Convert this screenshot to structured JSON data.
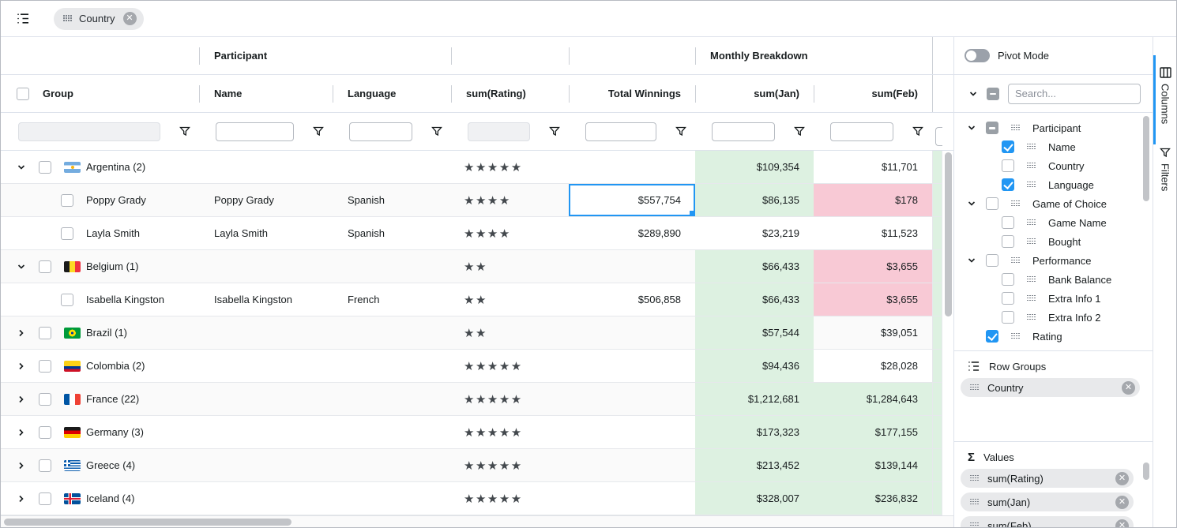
{
  "toolbar": {
    "group_chip": "Country"
  },
  "grid": {
    "column_groups": [
      {
        "label": "",
        "span": 1
      },
      {
        "label": "Participant",
        "span": 2
      },
      {
        "label": "",
        "span": 1
      },
      {
        "label": "",
        "span": 1
      },
      {
        "label": "Monthly Breakdown",
        "span": 2
      }
    ],
    "columns": [
      {
        "label": "Group",
        "align": "left",
        "filter": "disabled",
        "has_checkbox": true
      },
      {
        "label": "Name",
        "align": "left",
        "filter": "text"
      },
      {
        "label": "Language",
        "align": "left",
        "filter": "text"
      },
      {
        "label": "sum(Rating)",
        "align": "left",
        "filter": "disabled"
      },
      {
        "label": "Total Winnings",
        "align": "right",
        "filter": "text"
      },
      {
        "label": "sum(Jan)",
        "align": "right",
        "filter": "text"
      },
      {
        "label": "sum(Feb)",
        "align": "right",
        "filter": "text"
      }
    ],
    "rows": [
      {
        "kind": "group",
        "flag": "argentina",
        "country": "Argentina",
        "count": 2,
        "expanded": true,
        "stars": 5,
        "winnings": "",
        "jan": "$109,354",
        "jan_bg": "green",
        "feb": "$11,701",
        "feb_bg": "none"
      },
      {
        "kind": "leaf",
        "name": "Poppy Grady",
        "language": "Spanish",
        "stars": 4,
        "winnings": "$557,754",
        "selected": true,
        "jan": "$86,135",
        "jan_bg": "green",
        "feb": "$178",
        "feb_bg": "pink"
      },
      {
        "kind": "leaf",
        "name": "Layla Smith",
        "language": "Spanish",
        "stars": 4,
        "winnings": "$289,890",
        "jan": "$23,219",
        "jan_bg": "none",
        "feb": "$11,523",
        "feb_bg": "none"
      },
      {
        "kind": "group",
        "flag": "belgium",
        "country": "Belgium",
        "count": 1,
        "expanded": true,
        "stars": 2,
        "winnings": "",
        "jan": "$66,433",
        "jan_bg": "green",
        "feb": "$3,655",
        "feb_bg": "pink"
      },
      {
        "kind": "leaf",
        "name": "Isabella Kingston",
        "language": "French",
        "stars": 2,
        "winnings": "$506,858",
        "jan": "$66,433",
        "jan_bg": "green",
        "feb": "$3,655",
        "feb_bg": "pink"
      },
      {
        "kind": "group",
        "flag": "brazil",
        "country": "Brazil",
        "count": 1,
        "expanded": false,
        "stars": 2,
        "winnings": "",
        "jan": "$57,544",
        "jan_bg": "green",
        "feb": "$39,051",
        "feb_bg": "none"
      },
      {
        "kind": "group",
        "flag": "colombia",
        "country": "Colombia",
        "count": 2,
        "expanded": false,
        "stars": 5,
        "winnings": "",
        "jan": "$94,436",
        "jan_bg": "green",
        "feb": "$28,028",
        "feb_bg": "none"
      },
      {
        "kind": "group",
        "flag": "france",
        "country": "France",
        "count": 22,
        "expanded": false,
        "stars": 5,
        "winnings": "",
        "jan": "$1,212,681",
        "jan_bg": "green",
        "feb": "$1,284,643",
        "feb_bg": "green"
      },
      {
        "kind": "group",
        "flag": "germany",
        "country": "Germany",
        "count": 3,
        "expanded": false,
        "stars": 5,
        "winnings": "",
        "jan": "$173,323",
        "jan_bg": "green",
        "feb": "$177,155",
        "feb_bg": "green"
      },
      {
        "kind": "group",
        "flag": "greece",
        "country": "Greece",
        "count": 4,
        "expanded": false,
        "stars": 5,
        "winnings": "",
        "jan": "$213,452",
        "jan_bg": "green",
        "feb": "$139,144",
        "feb_bg": "green"
      },
      {
        "kind": "group",
        "flag": "iceland",
        "country": "Iceland",
        "count": 4,
        "expanded": false,
        "stars": 5,
        "winnings": "",
        "jan": "$328,007",
        "jan_bg": "green",
        "feb": "$236,832",
        "feb_bg": "green"
      }
    ]
  },
  "sidebar": {
    "pivot_mode_label": "Pivot Mode",
    "search_placeholder": "Search...",
    "tree": [
      {
        "label": "Participant",
        "level": 0,
        "chevron": true,
        "checkbox": "indeterminate"
      },
      {
        "label": "Name",
        "level": 1,
        "chevron": false,
        "checkbox": "checked"
      },
      {
        "label": "Country",
        "level": 1,
        "chevron": false,
        "checkbox": "unchecked"
      },
      {
        "label": "Language",
        "level": 1,
        "chevron": false,
        "checkbox": "checked"
      },
      {
        "label": "Game of Choice",
        "level": 0,
        "chevron": true,
        "checkbox": "unchecked"
      },
      {
        "label": "Game Name",
        "level": 1,
        "chevron": false,
        "checkbox": "unchecked"
      },
      {
        "label": "Bought",
        "level": 1,
        "chevron": false,
        "checkbox": "unchecked"
      },
      {
        "label": "Performance",
        "level": 0,
        "chevron": true,
        "checkbox": "unchecked"
      },
      {
        "label": "Bank Balance",
        "level": 1,
        "chevron": false,
        "checkbox": "unchecked"
      },
      {
        "label": "Extra Info 1",
        "level": 1,
        "chevron": false,
        "checkbox": "unchecked"
      },
      {
        "label": "Extra Info 2",
        "level": 1,
        "chevron": false,
        "checkbox": "unchecked"
      },
      {
        "label": "Rating",
        "level": 0,
        "chevron": false,
        "checkbox": "checked"
      }
    ],
    "row_groups": {
      "label": "Row Groups",
      "chips": [
        "Country"
      ]
    },
    "values": {
      "label": "Values",
      "chips": [
        "sum(Rating)",
        "sum(Jan)",
        "sum(Feb)"
      ]
    }
  },
  "tabs": [
    {
      "label": "Columns",
      "active": true
    },
    {
      "label": "Filters",
      "active": false
    }
  ],
  "colors": {
    "accent": "#2196f3",
    "positive_cell_bg": "#ddf1e1",
    "negative_cell_bg": "#f8c9d5"
  }
}
